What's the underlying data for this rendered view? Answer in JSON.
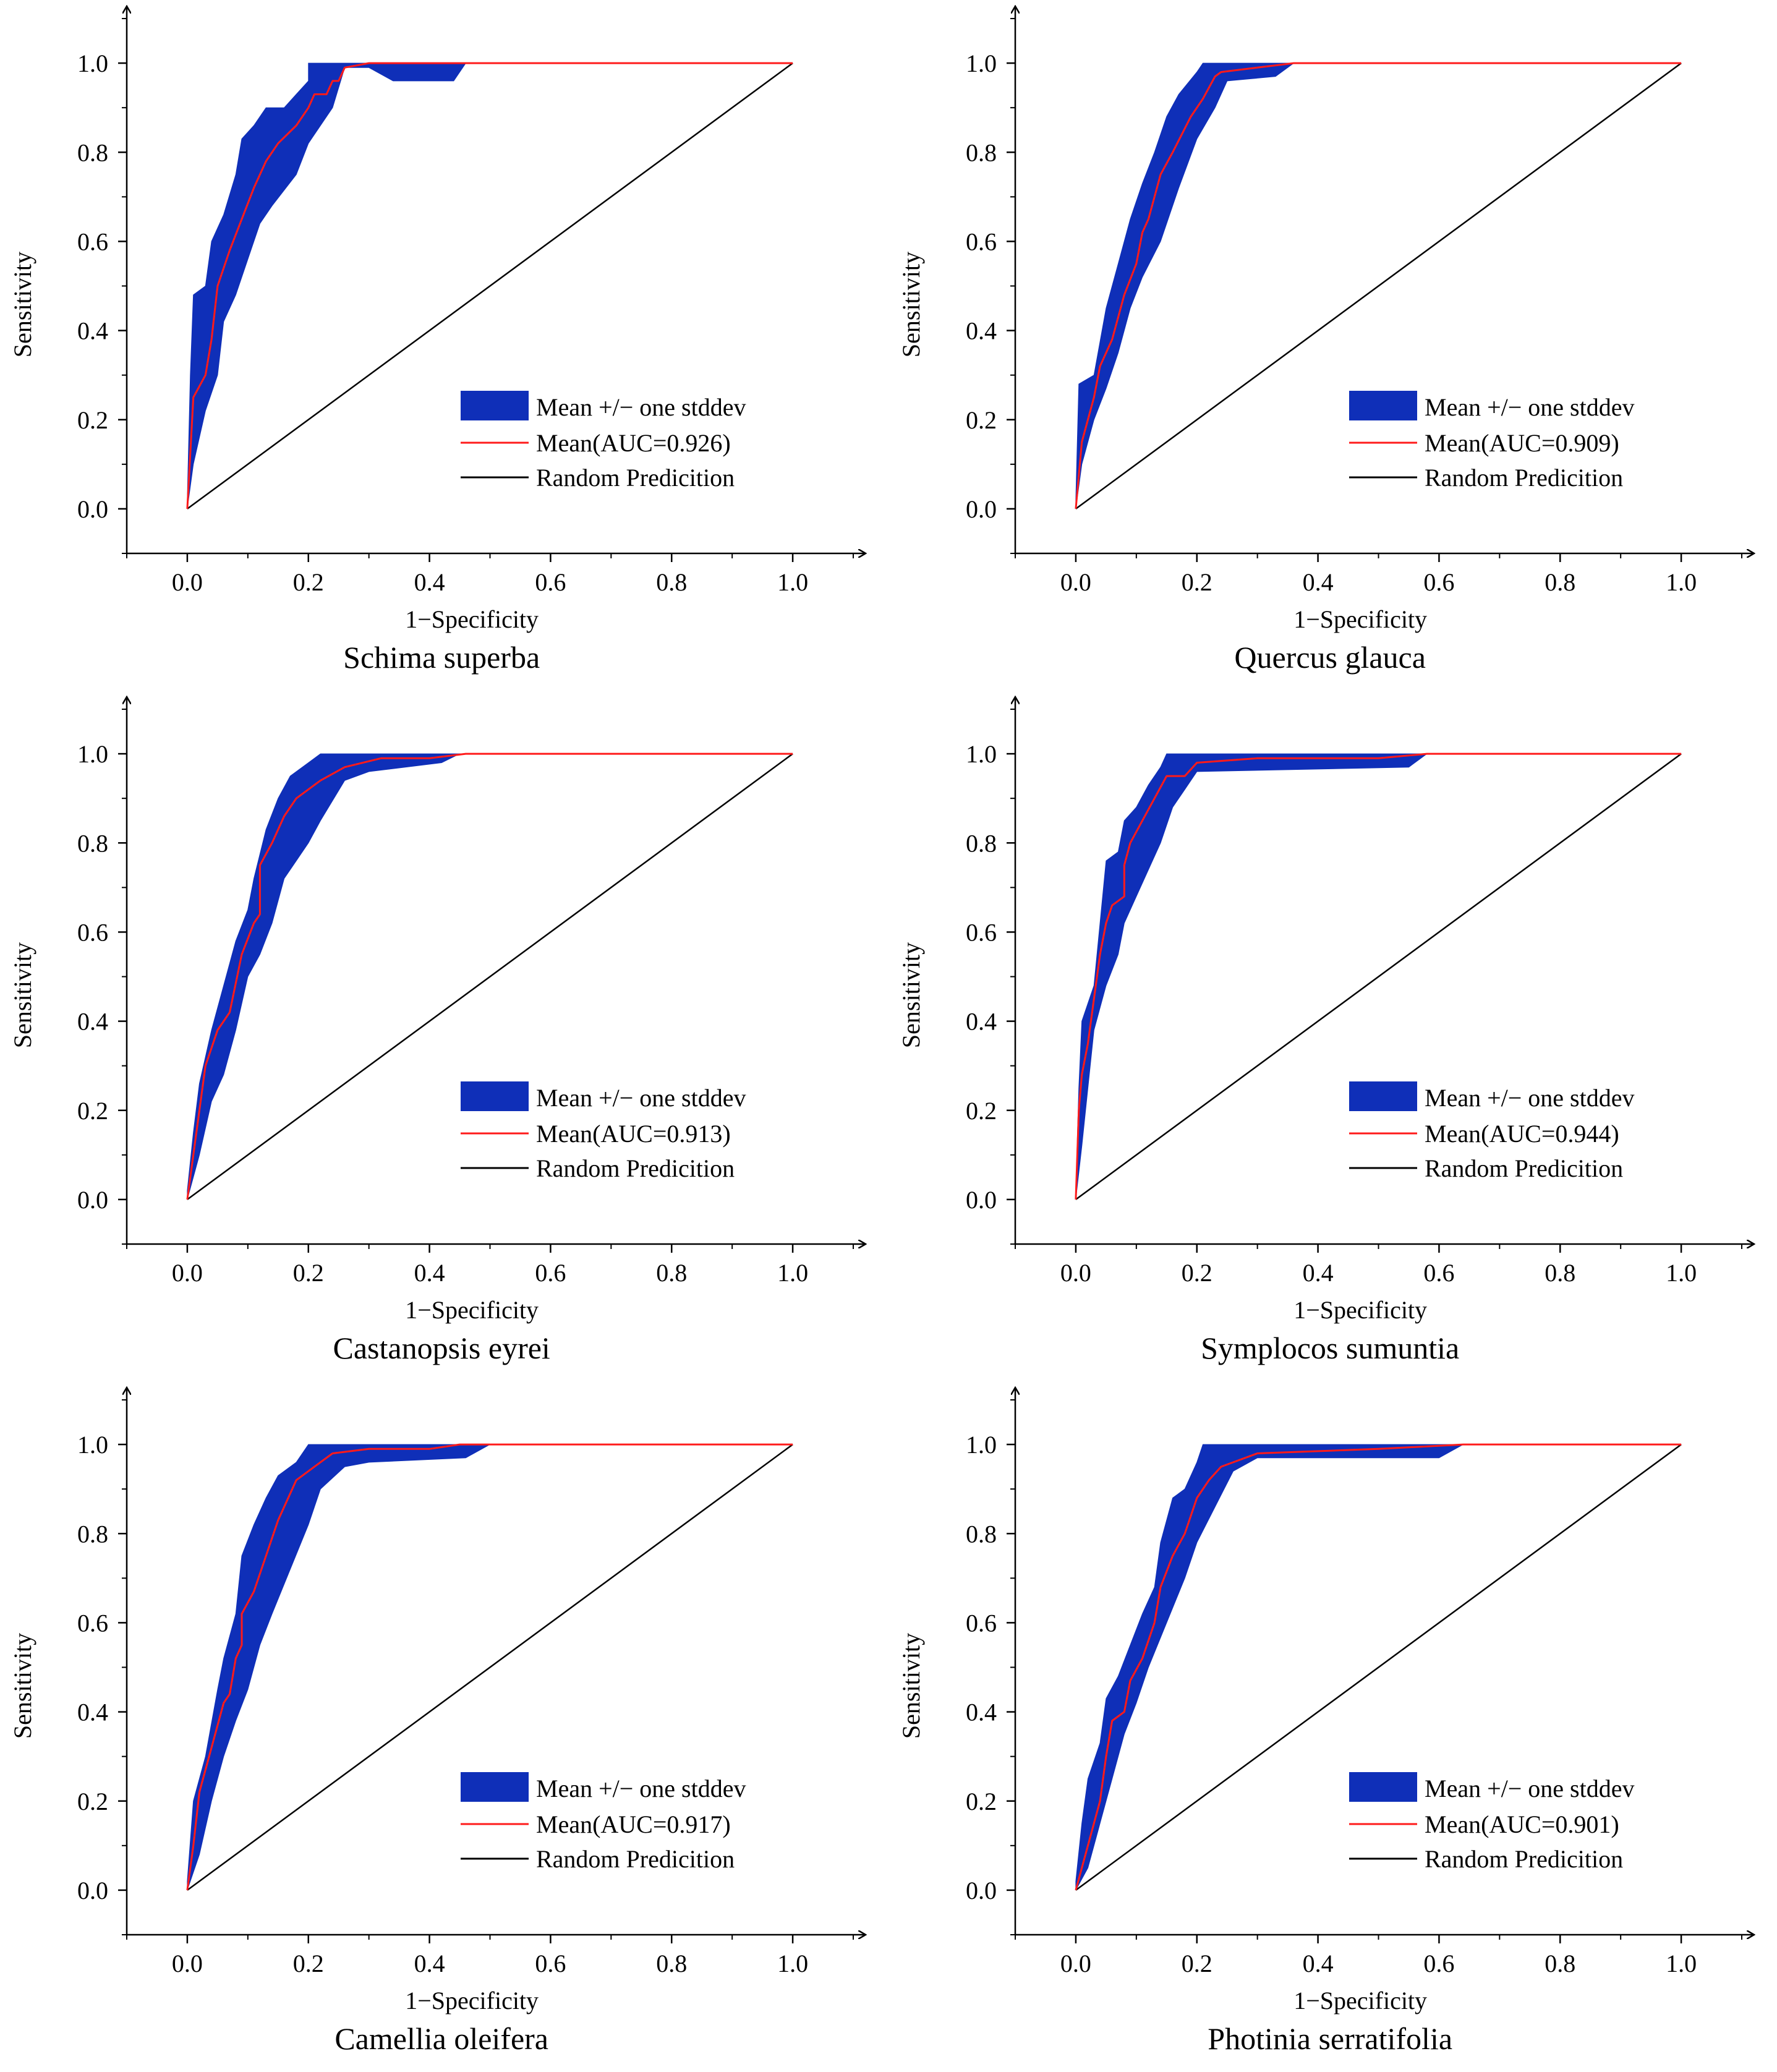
{
  "colors": {
    "band": "#0F2FB8",
    "mean": "#FF1A1A",
    "random": "#000000",
    "axis": "#000000"
  },
  "legend_labels": {
    "band": "Mean +/− one stddev",
    "random": "Random Predicition"
  },
  "chart_data": [
    {
      "type": "area",
      "caption": "Schima superba",
      "xlabel": "1−Specificity",
      "ylabel": "Sensitivity",
      "xlim": [
        -0.1,
        1.1
      ],
      "ylim": [
        -0.1,
        1.1
      ],
      "xticks": [
        "0.0",
        "0.2",
        "0.4",
        "0.6",
        "0.8",
        "1.0"
      ],
      "yticks": [
        "0.0",
        "0.2",
        "0.4",
        "0.6",
        "0.8",
        "1.0"
      ],
      "mean_label": "Mean(AUC=0.926)",
      "mean": [
        [
          0,
          0
        ],
        [
          0.01,
          0.25
        ],
        [
          0.03,
          0.3
        ],
        [
          0.04,
          0.38
        ],
        [
          0.05,
          0.5
        ],
        [
          0.07,
          0.58
        ],
        [
          0.09,
          0.65
        ],
        [
          0.11,
          0.72
        ],
        [
          0.13,
          0.78
        ],
        [
          0.15,
          0.82
        ],
        [
          0.18,
          0.86
        ],
        [
          0.2,
          0.9
        ],
        [
          0.21,
          0.93
        ],
        [
          0.23,
          0.93
        ],
        [
          0.24,
          0.96
        ],
        [
          0.25,
          0.96
        ],
        [
          0.26,
          0.99
        ],
        [
          0.3,
          1.0
        ],
        [
          0.46,
          1.0
        ],
        [
          1.0,
          1.0
        ]
      ],
      "upper": [
        [
          0,
          0.02
        ],
        [
          0.005,
          0.3
        ],
        [
          0.01,
          0.48
        ],
        [
          0.03,
          0.5
        ],
        [
          0.04,
          0.6
        ],
        [
          0.06,
          0.66
        ],
        [
          0.08,
          0.75
        ],
        [
          0.09,
          0.83
        ],
        [
          0.11,
          0.86
        ],
        [
          0.13,
          0.9
        ],
        [
          0.16,
          0.9
        ],
        [
          0.18,
          0.93
        ],
        [
          0.2,
          0.96
        ],
        [
          0.2,
          1.0
        ],
        [
          0.46,
          1.0
        ],
        [
          1.0,
          1.0
        ]
      ],
      "lower": [
        [
          1.0,
          1.0
        ],
        [
          0.46,
          1.0
        ],
        [
          0.44,
          0.96
        ],
        [
          0.34,
          0.96
        ],
        [
          0.3,
          0.99
        ],
        [
          0.26,
          0.99
        ],
        [
          0.24,
          0.9
        ],
        [
          0.2,
          0.82
        ],
        [
          0.18,
          0.75
        ],
        [
          0.14,
          0.68
        ],
        [
          0.12,
          0.64
        ],
        [
          0.1,
          0.56
        ],
        [
          0.08,
          0.48
        ],
        [
          0.06,
          0.42
        ],
        [
          0.05,
          0.3
        ],
        [
          0.03,
          0.22
        ],
        [
          0.01,
          0.1
        ],
        [
          0,
          0.0
        ]
      ]
    },
    {
      "type": "area",
      "caption": "Quercus glauca",
      "xlabel": "1−Specificity",
      "ylabel": "Sensitivity",
      "xlim": [
        -0.1,
        1.1
      ],
      "ylim": [
        -0.1,
        1.1
      ],
      "xticks": [
        "0.0",
        "0.2",
        "0.4",
        "0.6",
        "0.8",
        "1.0"
      ],
      "yticks": [
        "0.0",
        "0.2",
        "0.4",
        "0.6",
        "0.8",
        "1.0"
      ],
      "mean_label": "Mean(AUC=0.909)",
      "mean": [
        [
          0,
          0
        ],
        [
          0.01,
          0.15
        ],
        [
          0.03,
          0.25
        ],
        [
          0.04,
          0.32
        ],
        [
          0.06,
          0.38
        ],
        [
          0.08,
          0.48
        ],
        [
          0.1,
          0.55
        ],
        [
          0.11,
          0.62
        ],
        [
          0.12,
          0.65
        ],
        [
          0.14,
          0.75
        ],
        [
          0.16,
          0.8
        ],
        [
          0.19,
          0.88
        ],
        [
          0.21,
          0.92
        ],
        [
          0.23,
          0.97
        ],
        [
          0.24,
          0.98
        ],
        [
          0.3,
          0.99
        ],
        [
          0.36,
          1.0
        ],
        [
          1.0,
          1.0
        ]
      ],
      "upper": [
        [
          0,
          0.02
        ],
        [
          0.005,
          0.28
        ],
        [
          0.03,
          0.3
        ],
        [
          0.05,
          0.45
        ],
        [
          0.07,
          0.55
        ],
        [
          0.09,
          0.65
        ],
        [
          0.11,
          0.73
        ],
        [
          0.13,
          0.8
        ],
        [
          0.15,
          0.88
        ],
        [
          0.17,
          0.93
        ],
        [
          0.2,
          0.98
        ],
        [
          0.21,
          1.0
        ],
        [
          0.36,
          1.0
        ],
        [
          1.0,
          1.0
        ]
      ],
      "lower": [
        [
          1.0,
          1.0
        ],
        [
          0.36,
          1.0
        ],
        [
          0.33,
          0.97
        ],
        [
          0.25,
          0.96
        ],
        [
          0.23,
          0.9
        ],
        [
          0.2,
          0.83
        ],
        [
          0.17,
          0.72
        ],
        [
          0.14,
          0.6
        ],
        [
          0.11,
          0.52
        ],
        [
          0.09,
          0.45
        ],
        [
          0.07,
          0.35
        ],
        [
          0.05,
          0.27
        ],
        [
          0.03,
          0.2
        ],
        [
          0.01,
          0.1
        ],
        [
          0,
          0.0
        ]
      ]
    },
    {
      "type": "area",
      "caption": "Castanopsis eyrei",
      "xlabel": "1−Specificity",
      "ylabel": "Sensitivity",
      "xlim": [
        -0.1,
        1.1
      ],
      "ylim": [
        -0.1,
        1.1
      ],
      "xticks": [
        "0.0",
        "0.2",
        "0.4",
        "0.6",
        "0.8",
        "1.0"
      ],
      "yticks": [
        "0.0",
        "0.2",
        "0.4",
        "0.6",
        "0.8",
        "1.0"
      ],
      "mean_label": "Mean(AUC=0.913)",
      "mean": [
        [
          0,
          0
        ],
        [
          0.01,
          0.1
        ],
        [
          0.03,
          0.3
        ],
        [
          0.05,
          0.38
        ],
        [
          0.07,
          0.42
        ],
        [
          0.09,
          0.55
        ],
        [
          0.11,
          0.62
        ],
        [
          0.12,
          0.64
        ],
        [
          0.12,
          0.75
        ],
        [
          0.14,
          0.8
        ],
        [
          0.16,
          0.86
        ],
        [
          0.18,
          0.9
        ],
        [
          0.22,
          0.94
        ],
        [
          0.26,
          0.97
        ],
        [
          0.32,
          0.99
        ],
        [
          0.4,
          0.99
        ],
        [
          0.46,
          1.0
        ],
        [
          1.0,
          1.0
        ]
      ],
      "upper": [
        [
          0,
          0.02
        ],
        [
          0.01,
          0.15
        ],
        [
          0.02,
          0.26
        ],
        [
          0.04,
          0.38
        ],
        [
          0.06,
          0.48
        ],
        [
          0.08,
          0.58
        ],
        [
          0.1,
          0.65
        ],
        [
          0.11,
          0.72
        ],
        [
          0.13,
          0.83
        ],
        [
          0.15,
          0.9
        ],
        [
          0.17,
          0.95
        ],
        [
          0.2,
          0.98
        ],
        [
          0.22,
          1.0
        ],
        [
          0.45,
          1.0
        ],
        [
          1.0,
          1.0
        ]
      ],
      "lower": [
        [
          1.0,
          1.0
        ],
        [
          0.45,
          1.0
        ],
        [
          0.42,
          0.98
        ],
        [
          0.3,
          0.96
        ],
        [
          0.26,
          0.94
        ],
        [
          0.22,
          0.85
        ],
        [
          0.2,
          0.8
        ],
        [
          0.16,
          0.72
        ],
        [
          0.14,
          0.62
        ],
        [
          0.12,
          0.55
        ],
        [
          0.1,
          0.5
        ],
        [
          0.08,
          0.38
        ],
        [
          0.06,
          0.28
        ],
        [
          0.04,
          0.22
        ],
        [
          0.02,
          0.1
        ],
        [
          0,
          0.0
        ]
      ]
    },
    {
      "type": "area",
      "caption": "Symplocos sumuntia",
      "xlabel": "1−Specificity",
      "ylabel": "Sensitivity",
      "xlim": [
        -0.1,
        1.1
      ],
      "ylim": [
        -0.1,
        1.1
      ],
      "xticks": [
        "0.0",
        "0.2",
        "0.4",
        "0.6",
        "0.8",
        "1.0"
      ],
      "yticks": [
        "0.0",
        "0.2",
        "0.4",
        "0.6",
        "0.8",
        "1.0"
      ],
      "mean_label": "Mean(AUC=0.944)",
      "mean": [
        [
          0,
          0
        ],
        [
          0.005,
          0.2
        ],
        [
          0.01,
          0.28
        ],
        [
          0.02,
          0.35
        ],
        [
          0.03,
          0.45
        ],
        [
          0.04,
          0.55
        ],
        [
          0.05,
          0.62
        ],
        [
          0.06,
          0.66
        ],
        [
          0.08,
          0.68
        ],
        [
          0.08,
          0.75
        ],
        [
          0.09,
          0.8
        ],
        [
          0.11,
          0.85
        ],
        [
          0.13,
          0.9
        ],
        [
          0.15,
          0.95
        ],
        [
          0.18,
          0.95
        ],
        [
          0.2,
          0.98
        ],
        [
          0.3,
          0.99
        ],
        [
          0.5,
          0.99
        ],
        [
          0.58,
          1.0
        ],
        [
          1.0,
          1.0
        ]
      ],
      "upper": [
        [
          0,
          0.02
        ],
        [
          0.005,
          0.25
        ],
        [
          0.01,
          0.4
        ],
        [
          0.03,
          0.48
        ],
        [
          0.04,
          0.62
        ],
        [
          0.05,
          0.76
        ],
        [
          0.07,
          0.78
        ],
        [
          0.08,
          0.85
        ],
        [
          0.1,
          0.88
        ],
        [
          0.12,
          0.93
        ],
        [
          0.14,
          0.97
        ],
        [
          0.15,
          1.0
        ],
        [
          0.58,
          1.0
        ],
        [
          1.0,
          1.0
        ]
      ],
      "lower": [
        [
          1.0,
          1.0
        ],
        [
          0.58,
          1.0
        ],
        [
          0.55,
          0.97
        ],
        [
          0.2,
          0.96
        ],
        [
          0.18,
          0.92
        ],
        [
          0.16,
          0.88
        ],
        [
          0.14,
          0.8
        ],
        [
          0.12,
          0.74
        ],
        [
          0.1,
          0.68
        ],
        [
          0.08,
          0.62
        ],
        [
          0.07,
          0.55
        ],
        [
          0.05,
          0.48
        ],
        [
          0.03,
          0.38
        ],
        [
          0.02,
          0.25
        ],
        [
          0.01,
          0.12
        ],
        [
          0,
          0.0
        ]
      ]
    },
    {
      "type": "area",
      "caption": "Camellia oleifera",
      "xlabel": "1−Specificity",
      "ylabel": "Sensitivity",
      "xlim": [
        -0.1,
        1.1
      ],
      "ylim": [
        -0.1,
        1.1
      ],
      "xticks": [
        "0.0",
        "0.2",
        "0.4",
        "0.6",
        "0.8",
        "1.0"
      ],
      "yticks": [
        "0.0",
        "0.2",
        "0.4",
        "0.6",
        "0.8",
        "1.0"
      ],
      "mean_label": "Mean(AUC=0.917)",
      "mean": [
        [
          0,
          0
        ],
        [
          0.01,
          0.1
        ],
        [
          0.02,
          0.22
        ],
        [
          0.04,
          0.32
        ],
        [
          0.06,
          0.42
        ],
        [
          0.07,
          0.44
        ],
        [
          0.08,
          0.52
        ],
        [
          0.09,
          0.55
        ],
        [
          0.09,
          0.62
        ],
        [
          0.11,
          0.67
        ],
        [
          0.13,
          0.75
        ],
        [
          0.15,
          0.83
        ],
        [
          0.18,
          0.92
        ],
        [
          0.21,
          0.95
        ],
        [
          0.24,
          0.98
        ],
        [
          0.3,
          0.99
        ],
        [
          0.4,
          0.99
        ],
        [
          0.45,
          1.0
        ],
        [
          1.0,
          1.0
        ]
      ],
      "upper": [
        [
          0,
          0.02
        ],
        [
          0.01,
          0.2
        ],
        [
          0.03,
          0.3
        ],
        [
          0.05,
          0.45
        ],
        [
          0.06,
          0.52
        ],
        [
          0.08,
          0.62
        ],
        [
          0.09,
          0.75
        ],
        [
          0.11,
          0.82
        ],
        [
          0.13,
          0.88
        ],
        [
          0.15,
          0.93
        ],
        [
          0.18,
          0.96
        ],
        [
          0.2,
          1.0
        ],
        [
          0.5,
          1.0
        ],
        [
          1.0,
          1.0
        ]
      ],
      "lower": [
        [
          1.0,
          1.0
        ],
        [
          0.5,
          1.0
        ],
        [
          0.46,
          0.97
        ],
        [
          0.3,
          0.96
        ],
        [
          0.26,
          0.95
        ],
        [
          0.22,
          0.9
        ],
        [
          0.2,
          0.82
        ],
        [
          0.17,
          0.72
        ],
        [
          0.14,
          0.62
        ],
        [
          0.12,
          0.55
        ],
        [
          0.1,
          0.45
        ],
        [
          0.08,
          0.38
        ],
        [
          0.06,
          0.3
        ],
        [
          0.04,
          0.2
        ],
        [
          0.02,
          0.08
        ],
        [
          0,
          0.0
        ]
      ]
    },
    {
      "type": "area",
      "caption": "Photinia serratifolia",
      "xlabel": "1−Specificity",
      "ylabel": "Sensitivity",
      "xlim": [
        -0.1,
        1.1
      ],
      "ylim": [
        -0.1,
        1.1
      ],
      "xticks": [
        "0.0",
        "0.2",
        "0.4",
        "0.6",
        "0.8",
        "1.0"
      ],
      "yticks": [
        "0.0",
        "0.2",
        "0.4",
        "0.6",
        "0.8",
        "1.0"
      ],
      "mean_label": "Mean(AUC=0.901)",
      "mean": [
        [
          0,
          0
        ],
        [
          0.02,
          0.1
        ],
        [
          0.04,
          0.2
        ],
        [
          0.05,
          0.3
        ],
        [
          0.06,
          0.38
        ],
        [
          0.08,
          0.4
        ],
        [
          0.09,
          0.47
        ],
        [
          0.11,
          0.52
        ],
        [
          0.13,
          0.6
        ],
        [
          0.14,
          0.68
        ],
        [
          0.16,
          0.75
        ],
        [
          0.18,
          0.8
        ],
        [
          0.2,
          0.88
        ],
        [
          0.22,
          0.92
        ],
        [
          0.24,
          0.95
        ],
        [
          0.26,
          0.96
        ],
        [
          0.3,
          0.98
        ],
        [
          0.5,
          0.99
        ],
        [
          0.64,
          1.0
        ],
        [
          1.0,
          1.0
        ]
      ],
      "upper": [
        [
          0,
          0.02
        ],
        [
          0.01,
          0.15
        ],
        [
          0.02,
          0.25
        ],
        [
          0.04,
          0.33
        ],
        [
          0.05,
          0.43
        ],
        [
          0.07,
          0.48
        ],
        [
          0.09,
          0.55
        ],
        [
          0.11,
          0.62
        ],
        [
          0.13,
          0.68
        ],
        [
          0.14,
          0.78
        ],
        [
          0.16,
          0.88
        ],
        [
          0.18,
          0.9
        ],
        [
          0.2,
          0.96
        ],
        [
          0.21,
          1.0
        ],
        [
          0.64,
          1.0
        ],
        [
          1.0,
          1.0
        ]
      ],
      "lower": [
        [
          1.0,
          1.0
        ],
        [
          0.64,
          1.0
        ],
        [
          0.6,
          0.97
        ],
        [
          0.3,
          0.97
        ],
        [
          0.26,
          0.94
        ],
        [
          0.23,
          0.86
        ],
        [
          0.2,
          0.78
        ],
        [
          0.18,
          0.7
        ],
        [
          0.15,
          0.6
        ],
        [
          0.12,
          0.5
        ],
        [
          0.1,
          0.42
        ],
        [
          0.08,
          0.35
        ],
        [
          0.06,
          0.25
        ],
        [
          0.04,
          0.15
        ],
        [
          0.02,
          0.05
        ],
        [
          0,
          0.0
        ]
      ]
    }
  ]
}
